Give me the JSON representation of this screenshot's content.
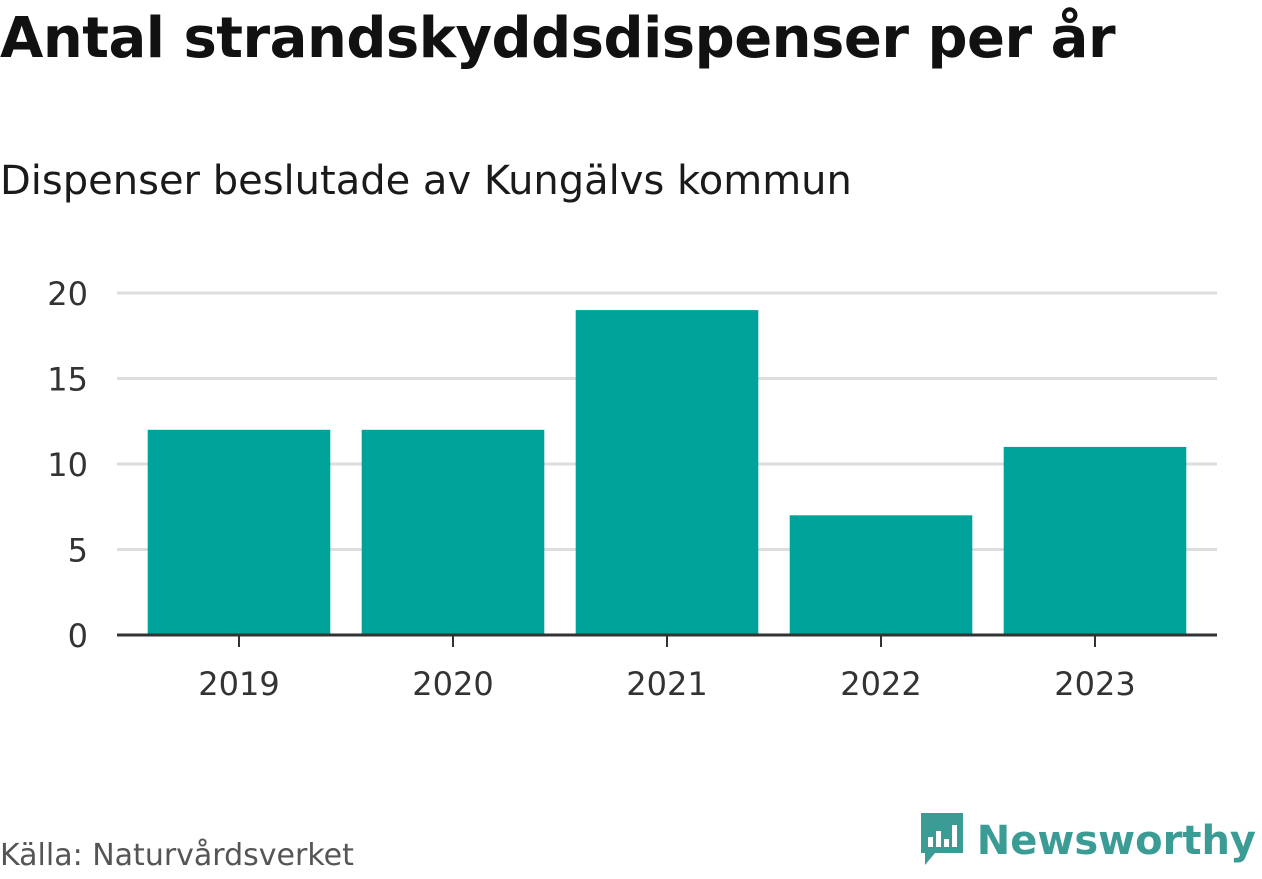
{
  "chart_data": {
    "type": "bar",
    "title": "Antal strandskyddsdispenser per år",
    "subtitle": "Dispenser beslutade av Kungälvs kommun",
    "categories": [
      "2019",
      "2020",
      "2021",
      "2022",
      "2023"
    ],
    "values": [
      12,
      12,
      19,
      7,
      11
    ],
    "ylim": [
      0,
      20
    ],
    "yticks": [
      0,
      5,
      10,
      15,
      20
    ],
    "xlabel": "",
    "ylabel": "",
    "grid": true,
    "bar_color": "#00a39a"
  },
  "footer": {
    "source": "Källa: Naturvårdsverket",
    "brand": "Newsworthy",
    "brand_color": "#3a9c94",
    "brand_icon": "newsworthy-logo-icon"
  }
}
